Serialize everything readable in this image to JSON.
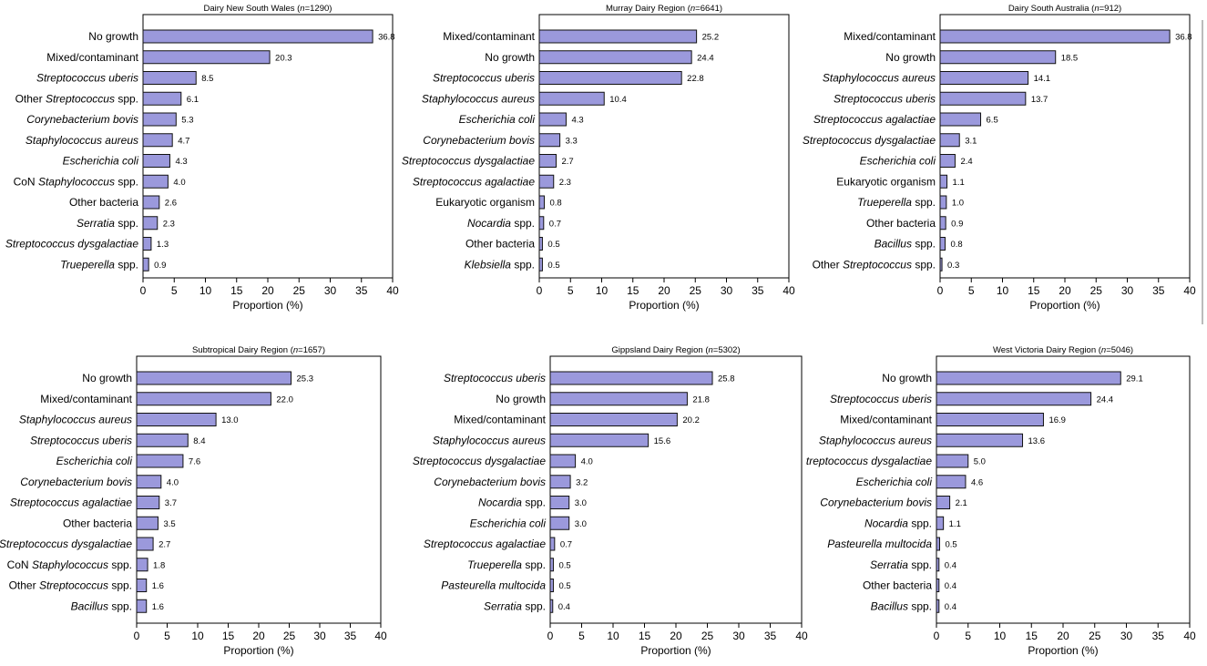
{
  "chart_data": [
    {
      "type": "bar",
      "orientation": "horizontal",
      "title": "Dairy New South Wales (n=1290)",
      "title_parts": {
        "prefix": "Dairy New South Wales (",
        "n_symbol": "n",
        "suffix": "=1290)"
      },
      "xlabel": "Proportion (%)",
      "xlim": [
        0,
        40
      ],
      "xticks": [
        0,
        5,
        10,
        15,
        20,
        25,
        30,
        35,
        40
      ],
      "categories": [
        "No growth",
        "Mixed/contaminant",
        "Streptococcus uberis",
        "Other Streptococcus spp.",
        "Corynebacterium bovis",
        "Staphylococcus aureus",
        "Escherichia coli",
        "CoN Staphylococcus spp.",
        "Other bacteria",
        "Serratia spp.",
        "Streptococcus dysgalactiae",
        "Trueperella spp."
      ],
      "value_labels": [
        "36.8",
        "20.3",
        "8.5",
        "6.1",
        "5.3",
        "4.7",
        "4.3",
        "4.0",
        "2.6",
        "2.3",
        "1.3",
        "0.9"
      ],
      "values": [
        36.8,
        20.3,
        8.5,
        6.1,
        5.3,
        4.7,
        4.3,
        4.0,
        2.6,
        2.3,
        1.3,
        0.9
      ]
    },
    {
      "type": "bar",
      "orientation": "horizontal",
      "title": "Murray Dairy Region (n=6641)",
      "title_parts": {
        "prefix": "Murray Dairy Region (",
        "n_symbol": "n",
        "suffix": "=6641)"
      },
      "xlabel": "Proportion (%)",
      "xlim": [
        0,
        40
      ],
      "xticks": [
        0,
        5,
        10,
        15,
        20,
        25,
        30,
        35,
        40
      ],
      "categories": [
        "Mixed/contaminant",
        "No growth",
        "Streptococcus uberis",
        "Staphylococcus aureus",
        "Escherichia coli",
        "Corynebacterium bovis",
        "Streptococcus dysgalactiae",
        "Streptococcus agalactiae",
        "Eukaryotic organism",
        "Nocardia spp.",
        "Other bacteria",
        "Klebsiella spp."
      ],
      "value_labels": [
        "25.2",
        "24.4",
        "22.8",
        "10.4",
        "4.3",
        "3.3",
        "2.7",
        "2.3",
        "0.8",
        "0.7",
        "0.5",
        "0.5"
      ],
      "values": [
        25.2,
        24.4,
        22.8,
        10.4,
        4.3,
        3.3,
        2.7,
        2.3,
        0.8,
        0.7,
        0.5,
        0.5
      ]
    },
    {
      "type": "bar",
      "orientation": "horizontal",
      "title": "Dairy South Australia (n=912)",
      "title_parts": {
        "prefix": "Dairy South Australia (",
        "n_symbol": "n",
        "suffix": "=912)"
      },
      "xlabel": "Proportion (%)",
      "xlim": [
        0,
        40
      ],
      "xticks": [
        0,
        5,
        10,
        15,
        20,
        25,
        30,
        35,
        40
      ],
      "categories": [
        "Mixed/contaminant",
        "No growth",
        "Staphylococcus aureus",
        "Streptococcus uberis",
        "Streptococcus agalactiae",
        "Streptococcus dysgalactiae",
        "Escherichia coli",
        "Eukaryotic organism",
        "Trueperella spp.",
        "Other bacteria",
        "Bacillus spp.",
        "Other Streptococcus spp."
      ],
      "value_labels": [
        "36.8",
        "18.5",
        "14.1",
        "13.7",
        "6.5",
        "3.1",
        "2.4",
        "1.1",
        "1.0",
        "0.9",
        "0.8",
        "0.3"
      ],
      "values": [
        36.8,
        18.5,
        14.1,
        13.7,
        6.5,
        3.1,
        2.4,
        1.1,
        1.0,
        0.9,
        0.8,
        0.3
      ]
    },
    {
      "type": "bar",
      "orientation": "horizontal",
      "title": "Subtropical Dairy Region (n=1657)",
      "title_parts": {
        "prefix": "Subtropical Dairy Region (",
        "n_symbol": "n",
        "suffix": "=1657)"
      },
      "xlabel": "Proportion (%)",
      "xlim": [
        0,
        40
      ],
      "xticks": [
        0,
        5,
        10,
        15,
        20,
        25,
        30,
        35,
        40
      ],
      "categories": [
        "No growth",
        "Mixed/contaminant",
        "Staphylococcus aureus",
        "Streptococcus uberis",
        "Escherichia coli",
        "Corynebacterium bovis",
        "Streptococcus agalactiae",
        "Other bacteria",
        "Streptococcus dysgalactiae",
        "CoN Staphylococcus spp.",
        "Other Streptococcus spp.",
        "Bacillus spp."
      ],
      "value_labels": [
        "25.3",
        "22.0",
        "13.0",
        "8.4",
        "7.6",
        "4.0",
        "3.7",
        "3.5",
        "2.7",
        "1.8",
        "1.6",
        "1.6"
      ],
      "values": [
        25.3,
        22.0,
        13.0,
        8.4,
        7.6,
        4.0,
        3.7,
        3.5,
        2.7,
        1.8,
        1.6,
        1.6
      ]
    },
    {
      "type": "bar",
      "orientation": "horizontal",
      "title": "Gippsland Dairy Region (n=5302)",
      "title_parts": {
        "prefix": "Gippsland Dairy Region (",
        "n_symbol": "n",
        "suffix": "=5302)"
      },
      "xlabel": "Proportion (%)",
      "xlim": [
        0,
        40
      ],
      "xticks": [
        0,
        5,
        10,
        15,
        20,
        25,
        30,
        35,
        40
      ],
      "categories": [
        "Streptococcus uberis",
        "No growth",
        "Mixed/contaminant",
        "Staphylococcus aureus",
        "Streptococcus dysgalactiae",
        "Corynebacterium bovis",
        "Nocardia spp.",
        "Escherichia coli",
        "Streptococcus agalactiae",
        "Trueperella spp.",
        "Pasteurella multocida",
        "Serratia spp."
      ],
      "value_labels": [
        "25.8",
        "21.8",
        "20.2",
        "15.6",
        "4.0",
        "3.2",
        "3.0",
        "3.0",
        "0.7",
        "0.5",
        "0.5",
        "0.4"
      ],
      "values": [
        25.8,
        21.8,
        20.2,
        15.6,
        4.0,
        3.2,
        3.0,
        3.0,
        0.7,
        0.5,
        0.5,
        0.4
      ]
    },
    {
      "type": "bar",
      "orientation": "horizontal",
      "title": "West Victoria Dairy Region (n=5046)",
      "title_parts": {
        "prefix": "West Victoria Dairy Region (",
        "n_symbol": "n",
        "suffix": "=5046)"
      },
      "xlabel": "Proportion (%)",
      "xlim": [
        0,
        40
      ],
      "xticks": [
        0,
        5,
        10,
        15,
        20,
        25,
        30,
        35,
        40
      ],
      "categories": [
        "No growth",
        "Streptococcus uberis",
        "Mixed/contaminant",
        "Staphylococcus aureus",
        "treptococcus dysgalactiae",
        "Escherichia coli",
        "Corynebacterium bovis",
        "Nocardia spp.",
        "Pasteurella multocida",
        "Serratia spp.",
        "Other bacteria",
        "Bacillus spp."
      ],
      "value_labels": [
        "29.1",
        "24.4",
        "16.9",
        "13.6",
        "5.0",
        "4.6",
        "2.1",
        "1.1",
        "0.5",
        "0.4",
        "0.4",
        "0.4"
      ],
      "values": [
        29.1,
        24.4,
        16.9,
        13.6,
        5.0,
        4.6,
        2.1,
        1.1,
        0.5,
        0.4,
        0.4,
        0.4
      ]
    }
  ],
  "colors": {
    "bar_fill": "#9b99dc",
    "bar_stroke": "#111111",
    "axis": "#000000",
    "background": "#ffffff"
  }
}
